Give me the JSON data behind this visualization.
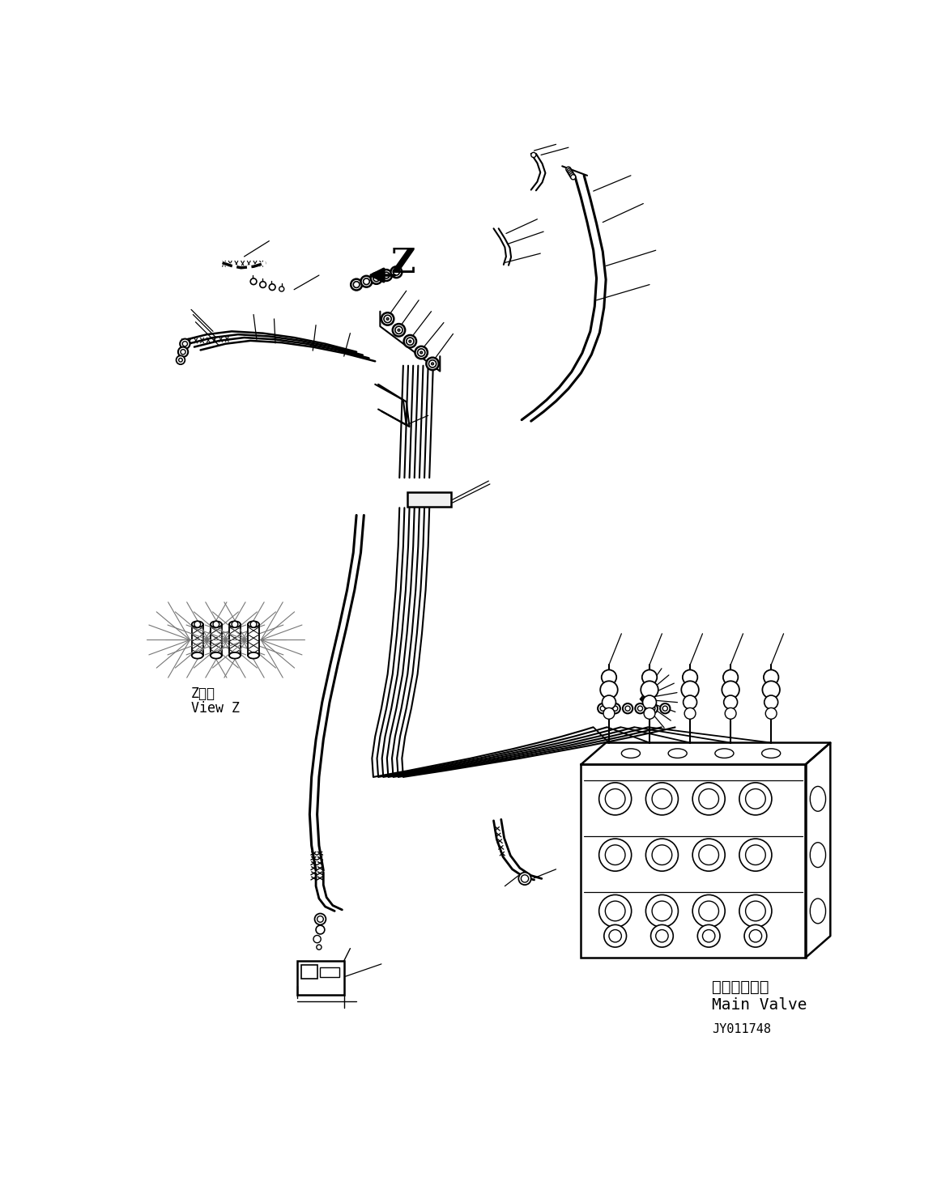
{
  "bg_color": "#ffffff",
  "lc": "#000000",
  "label_z": "Z",
  "label_view_z_jp": "Z　視",
  "label_view_z_en": "View Z",
  "label_main_valve_jp": "メインバルブ",
  "label_main_valve_en": "Main Valve",
  "label_drawing_no": "JY011748",
  "figsize": [
    11.57,
    14.54
  ],
  "dpi": 100
}
